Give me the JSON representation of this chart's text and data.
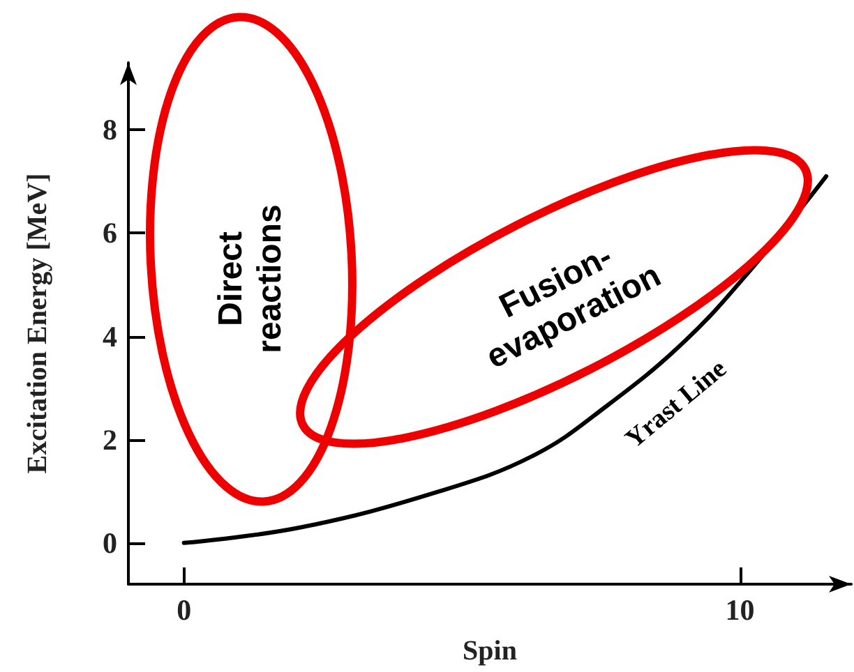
{
  "chart_data": {
    "type": "line",
    "xlabel": "Spin",
    "ylabel": "Excitation Energy [MeV]",
    "xlim": [
      -1,
      12
    ],
    "xticks": [
      0,
      10
    ],
    "ylim": [
      -0.8,
      9.3
    ],
    "yticks": [
      0,
      2,
      4,
      6,
      8
    ],
    "grid": false,
    "legend": false,
    "marker": "none",
    "line_style": "solid",
    "series": [
      {
        "name": "Yrast Line",
        "color": "#000000",
        "x": [
          0,
          2.1,
          4.6,
          6.3,
          7.6,
          9.0,
          10.2,
          11.55
        ],
        "values": [
          0,
          0.3,
          1.0,
          1.7,
          2.65,
          3.9,
          5.3,
          7.1
        ]
      }
    ],
    "annotations": [
      "Direct reactions",
      "Fusion-evaporation"
    ]
  }
}
